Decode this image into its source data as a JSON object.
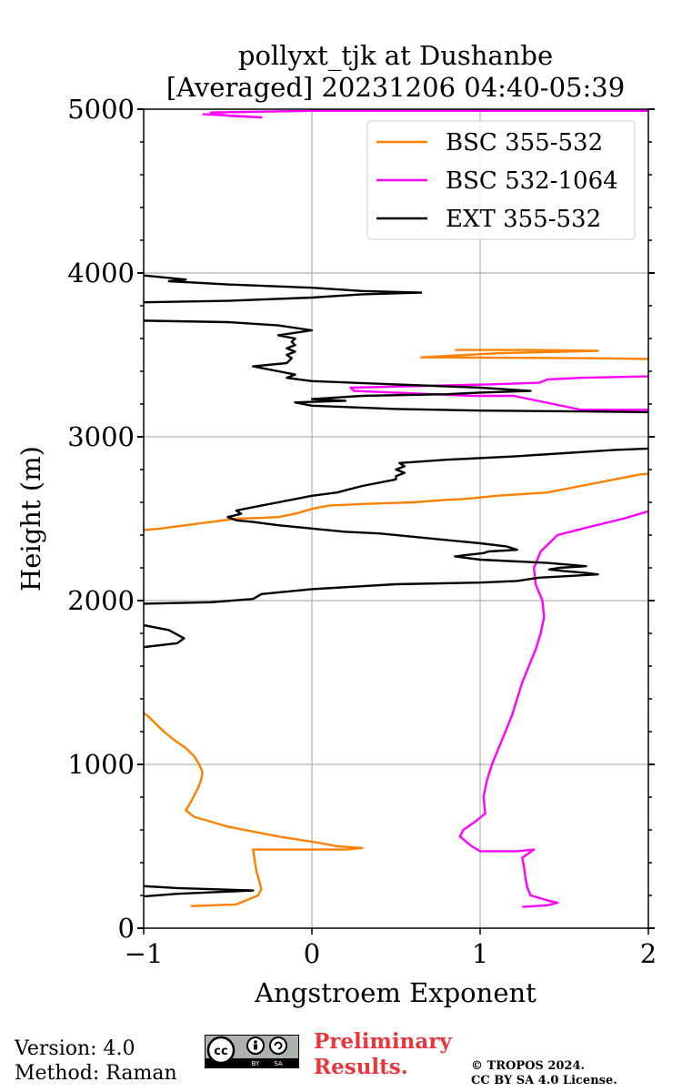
{
  "chart_data": {
    "type": "line",
    "title": [
      "pollyxt_tjk at Dushanbe",
      "[Averaged] 20231206 04:40-05:39"
    ],
    "xlabel": "Angstroem Exponent",
    "ylabel": "Height (m)",
    "xlim": [
      -1,
      2
    ],
    "ylim": [
      0,
      5000
    ],
    "xticks": [
      -1,
      0,
      1,
      2
    ],
    "xtick_labels": [
      "−1",
      "0",
      "1",
      "2"
    ],
    "yticks": [
      0,
      1000,
      2000,
      3000,
      4000,
      5000
    ],
    "ytick_labels": [
      "0",
      "1000",
      "2000",
      "3000",
      "4000",
      "5000"
    ],
    "grid": true,
    "legend_position": "top-right",
    "series": [
      {
        "name": "BSC 355-532",
        "color": "#ff8000",
        "points": [
          [
            -0.72,
            135
          ],
          [
            -0.45,
            145
          ],
          [
            -0.32,
            200
          ],
          [
            -0.3,
            240
          ],
          [
            -0.33,
            350
          ],
          [
            -0.35,
            480
          ],
          [
            0.2,
            480
          ],
          [
            0.3,
            490
          ],
          [
            0.15,
            500
          ],
          [
            0.05,
            520
          ],
          [
            -0.2,
            560
          ],
          [
            -0.5,
            620
          ],
          [
            -0.7,
            680
          ],
          [
            -0.75,
            720
          ],
          [
            -0.72,
            770
          ],
          [
            -0.7,
            810
          ],
          [
            -0.68,
            850
          ],
          [
            -0.66,
            900
          ],
          [
            -0.65,
            950
          ],
          [
            -0.67,
            1000
          ],
          [
            -0.7,
            1050
          ],
          [
            -0.75,
            1100
          ],
          [
            -0.82,
            1150
          ],
          [
            -0.88,
            1200
          ],
          [
            -0.93,
            1250
          ],
          [
            -0.98,
            1300
          ],
          [
            -1.05,
            1350
          ]
        ],
        "segments": [
          [
            [
              -1.05,
              2425
            ],
            [
              -0.9,
              2440
            ],
            [
              -0.75,
              2460
            ],
            [
              -0.6,
              2480
            ],
            [
              -0.45,
              2500
            ],
            [
              -0.3,
              2505
            ],
            [
              -0.2,
              2510
            ],
            [
              -0.1,
              2530
            ],
            [
              0.0,
              2560
            ],
            [
              0.1,
              2580
            ],
            [
              0.3,
              2590
            ],
            [
              0.6,
              2600
            ],
            [
              0.8,
              2615
            ],
            [
              0.9,
              2620
            ],
            [
              1.1,
              2640
            ],
            [
              1.4,
              2660
            ],
            [
              1.6,
              2700
            ],
            [
              1.8,
              2740
            ],
            [
              1.95,
              2770
            ],
            [
              2.05,
              2780
            ]
          ],
          [
            [
              2.05,
              3475
            ],
            [
              1.6,
              3480
            ],
            [
              1.2,
              3482
            ],
            [
              0.65,
              3485
            ],
            [
              1.1,
              3510
            ],
            [
              1.7,
              3525
            ],
            [
              1.3,
              3530
            ],
            [
              0.85,
              3530
            ]
          ]
        ]
      },
      {
        "name": "BSC 532-1064",
        "color": "#ff00ff",
        "points": [
          [
            1.25,
            130
          ],
          [
            1.4,
            140
          ],
          [
            1.46,
            155
          ],
          [
            1.4,
            170
          ],
          [
            1.3,
            200
          ],
          [
            1.28,
            250
          ],
          [
            1.27,
            300
          ],
          [
            1.26,
            380
          ],
          [
            1.25,
            430
          ],
          [
            1.32,
            480
          ],
          [
            1.22,
            470
          ],
          [
            1.0,
            470
          ],
          [
            0.95,
            500
          ],
          [
            0.88,
            560
          ],
          [
            0.9,
            600
          ],
          [
            0.97,
            650
          ],
          [
            1.03,
            700
          ],
          [
            1.02,
            800
          ],
          [
            1.04,
            900
          ],
          [
            1.07,
            1000
          ],
          [
            1.11,
            1100
          ],
          [
            1.15,
            1200
          ],
          [
            1.19,
            1300
          ],
          [
            1.22,
            1400
          ],
          [
            1.25,
            1500
          ],
          [
            1.29,
            1600
          ],
          [
            1.33,
            1700
          ],
          [
            1.36,
            1800
          ],
          [
            1.38,
            1900
          ],
          [
            1.37,
            2000
          ],
          [
            1.33,
            2100
          ],
          [
            1.32,
            2200
          ],
          [
            1.36,
            2300
          ],
          [
            1.46,
            2400
          ],
          [
            1.65,
            2450
          ],
          [
            1.85,
            2500
          ],
          [
            2.05,
            2560
          ]
        ],
        "segments": [
          [
            [
              2.05,
              3165
            ],
            [
              1.6,
              3165
            ],
            [
              1.2,
              3250
            ],
            [
              0.95,
              3250
            ],
            [
              0.25,
              3280
            ],
            [
              0.23,
              3300
            ],
            [
              1.05,
              3320
            ],
            [
              1.35,
              3330
            ],
            [
              1.4,
              3350
            ],
            [
              1.6,
              3360
            ],
            [
              2.05,
              3370
            ]
          ],
          [
            [
              -0.65,
              4970
            ],
            [
              -0.3,
              4950
            ],
            [
              -0.5,
              4960
            ],
            [
              -0.6,
              4980
            ],
            [
              0.0,
              4990
            ],
            [
              1.0,
              4990
            ],
            [
              2.05,
              4990
            ]
          ]
        ]
      },
      {
        "name": "EXT 355-532",
        "color": "#000000",
        "points": [
          [
            -1.05,
            135
          ],
          [
            -1.05,
            190
          ],
          [
            -0.8,
            210
          ],
          [
            -0.35,
            230
          ],
          [
            -0.8,
            245
          ],
          [
            -1.05,
            260
          ]
        ],
        "segments": [
          [
            [
              -1.05,
              1710
            ],
            [
              -0.8,
              1740
            ],
            [
              -0.76,
              1770
            ],
            [
              -0.85,
              1820
            ],
            [
              -1.05,
              1860
            ]
          ],
          [
            [
              -1.05,
              1980
            ],
            [
              -0.6,
              1990
            ],
            [
              -0.35,
              2010
            ],
            [
              -0.3,
              2040
            ],
            [
              0.0,
              2070
            ],
            [
              0.5,
              2100
            ],
            [
              1.0,
              2110
            ],
            [
              1.22,
              2120
            ],
            [
              1.35,
              2140
            ],
            [
              1.7,
              2160
            ],
            [
              1.62,
              2170
            ],
            [
              1.5,
              2180
            ],
            [
              1.41,
              2190
            ],
            [
              1.47,
              2200
            ],
            [
              1.63,
              2210
            ],
            [
              1.4,
              2230
            ],
            [
              1.0,
              2250
            ],
            [
              0.85,
              2270
            ],
            [
              1.02,
              2290
            ],
            [
              1.05,
              2300
            ],
            [
              1.22,
              2310
            ],
            [
              1.16,
              2330
            ],
            [
              1.0,
              2350
            ],
            [
              0.8,
              2370
            ],
            [
              0.6,
              2390
            ],
            [
              0.4,
              2410
            ],
            [
              0.2,
              2420
            ],
            [
              0.0,
              2440
            ],
            [
              -0.2,
              2460
            ],
            [
              -0.35,
              2480
            ],
            [
              -0.45,
              2490
            ],
            [
              -0.5,
              2510
            ],
            [
              -0.42,
              2530
            ],
            [
              -0.45,
              2550
            ],
            [
              -0.3,
              2580
            ],
            [
              -0.2,
              2600
            ],
            [
              -0.1,
              2620
            ],
            [
              0.0,
              2640
            ],
            [
              0.15,
              2660
            ],
            [
              0.3,
              2700
            ],
            [
              0.5,
              2740
            ],
            [
              0.5,
              2760
            ],
            [
              0.55,
              2780
            ],
            [
              0.5,
              2800
            ],
            [
              0.55,
              2820
            ],
            [
              0.52,
              2840
            ],
            [
              0.8,
              2860
            ],
            [
              1.2,
              2880
            ],
            [
              1.5,
              2900
            ],
            [
              1.8,
              2920
            ],
            [
              2.05,
              2930
            ]
          ],
          [
            [
              2.05,
              3150
            ],
            [
              1.6,
              3155
            ],
            [
              1.0,
              3160
            ],
            [
              0.5,
              3170
            ],
            [
              0.0,
              3190
            ],
            [
              -0.1,
              3210
            ],
            [
              0.2,
              3220
            ],
            [
              0.0,
              3230
            ],
            [
              0.3,
              3250
            ],
            [
              0.8,
              3260
            ],
            [
              1.0,
              3270
            ],
            [
              1.3,
              3280
            ],
            [
              1.0,
              3300
            ],
            [
              0.5,
              3320
            ],
            [
              0.0,
              3340
            ],
            [
              -0.15,
              3360
            ],
            [
              -0.1,
              3380
            ],
            [
              -0.2,
              3400
            ],
            [
              -0.35,
              3430
            ],
            [
              -0.15,
              3450
            ],
            [
              -0.12,
              3480
            ],
            [
              -0.15,
              3500
            ],
            [
              -0.1,
              3520
            ],
            [
              -0.15,
              3540
            ],
            [
              -0.1,
              3560
            ],
            [
              -0.12,
              3580
            ],
            [
              -0.1,
              3600
            ],
            [
              -0.2,
              3620
            ],
            [
              0.0,
              3650
            ],
            [
              -0.2,
              3680
            ],
            [
              -0.5,
              3700
            ],
            [
              -1.05,
              3710
            ]
          ],
          [
            [
              -1.05,
              3820
            ],
            [
              -0.5,
              3830
            ],
            [
              0.0,
              3850
            ],
            [
              0.3,
              3870
            ],
            [
              0.65,
              3880
            ],
            [
              0.3,
              3890
            ],
            [
              0.0,
              3910
            ],
            [
              -0.5,
              3930
            ],
            [
              -0.85,
              3950
            ],
            [
              -0.75,
              3960
            ],
            [
              -1.05,
              3990
            ]
          ]
        ]
      }
    ]
  },
  "footer": {
    "version": "Version: 4.0",
    "method": "Method: Raman",
    "preliminary_line1": "Preliminary",
    "preliminary_line2": "Results.",
    "copyright_line1": "© TROPOS 2024.",
    "copyright_line2": "CC BY SA 4.0 License.",
    "license_badge": [
      "cc",
      "BY",
      "SA"
    ]
  }
}
